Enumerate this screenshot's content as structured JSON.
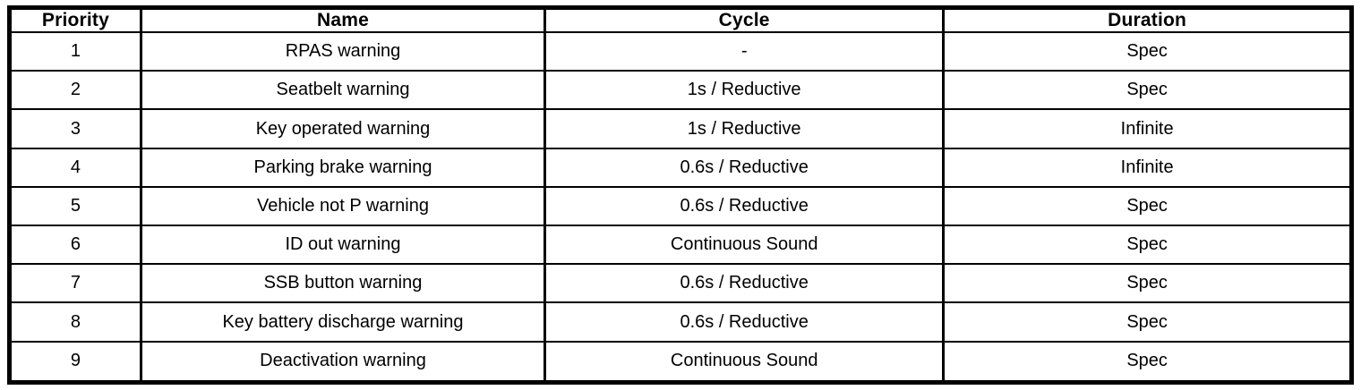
{
  "table": {
    "columns": [
      {
        "label": "Priority"
      },
      {
        "label": "Name"
      },
      {
        "label": "Cycle"
      },
      {
        "label": "Duration"
      }
    ],
    "rows": [
      {
        "priority": "1",
        "name": "RPAS warning",
        "cycle": "-",
        "duration": "Spec"
      },
      {
        "priority": "2",
        "name": "Seatbelt warning",
        "cycle": "1s / Reductive",
        "duration": "Spec"
      },
      {
        "priority": "3",
        "name": "Key operated warning",
        "cycle": "1s / Reductive",
        "duration": "Infinite"
      },
      {
        "priority": "4",
        "name": "Parking brake warning",
        "cycle": "0.6s / Reductive",
        "duration": "Infinite"
      },
      {
        "priority": "5",
        "name": "Vehicle not P warning",
        "cycle": "0.6s / Reductive",
        "duration": "Spec"
      },
      {
        "priority": "6",
        "name": "ID out warning",
        "cycle": "Continuous Sound",
        "duration": "Spec"
      },
      {
        "priority": "7",
        "name": "SSB button warning",
        "cycle": "0.6s / Reductive",
        "duration": "Spec"
      },
      {
        "priority": "8",
        "name": "Key battery discharge warning",
        "cycle": "0.6s / Reductive",
        "duration": "Spec"
      },
      {
        "priority": "9",
        "name": "Deactivation warning",
        "cycle": "Continuous Sound",
        "duration": "Spec"
      }
    ],
    "border_color": "#000000",
    "background_color": "#ffffff"
  }
}
